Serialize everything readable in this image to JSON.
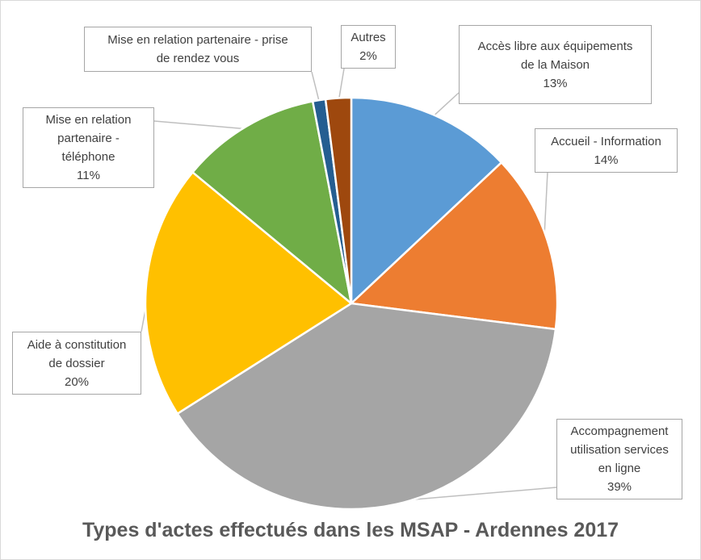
{
  "chart_data": {
    "type": "pie",
    "title": "Types d'actes effectués dans les MSAP - Ardennes 2017",
    "start_angle_deg": 0,
    "direction": "clockwise",
    "slices": [
      {
        "label_lines": [
          "Accès libre aux équipements",
          "de la Maison"
        ],
        "value": 13,
        "value_label": "13%",
        "color": "#5b9bd5"
      },
      {
        "label_lines": [
          "Accueil - Information"
        ],
        "value": 14,
        "value_label": "14%",
        "color": "#ed7d31"
      },
      {
        "label_lines": [
          "Accompagnement",
          "utilisation services",
          "en ligne"
        ],
        "value": 39,
        "value_label": "39%",
        "color": "#a5a5a5"
      },
      {
        "label_lines": [
          "Aide à constitution",
          "de dossier"
        ],
        "value": 20,
        "value_label": "20%",
        "color": "#ffc000"
      },
      {
        "label_lines": [
          "Mise en relation",
          "partenaire -",
          "téléphone"
        ],
        "value": 11,
        "value_label": "11%",
        "color": "#70ad47"
      },
      {
        "label_lines": [
          "Mise en relation partenaire - prise",
          "de rendez vous"
        ],
        "value": 1,
        "value_label": "",
        "color": "#255e91"
      },
      {
        "label_lines": [
          "Autres"
        ],
        "value": 2,
        "value_label": "2%",
        "color": "#9e480e"
      }
    ]
  }
}
